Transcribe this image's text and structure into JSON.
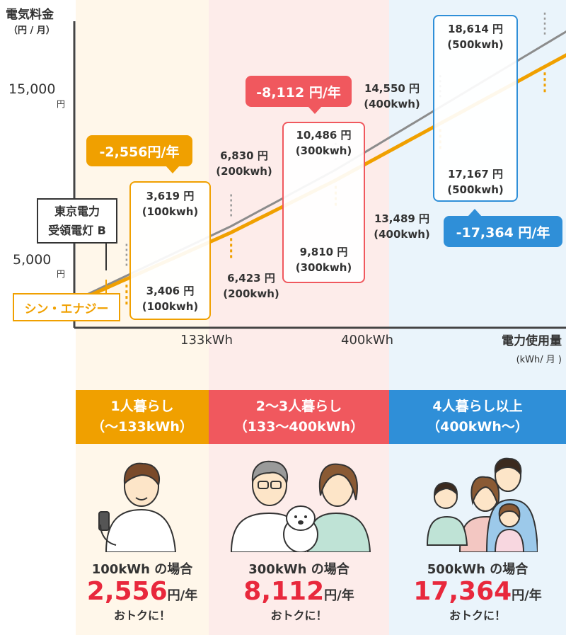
{
  "chart_data": {
    "type": "line",
    "ylabel_line1": "電気料金",
    "ylabel_line2": "（円 / 月）",
    "yticks": [
      {
        "value": "15,000",
        "unit": "円"
      },
      {
        "value": "5,000",
        "unit": "円"
      }
    ],
    "xlabel": "電力使用量",
    "xunit": "(kWh/ 月 )",
    "xticks": [
      "133kWh",
      "400kWh"
    ],
    "series": [
      {
        "name": "東京電力 受領電灯 B",
        "label_lines": [
          "東京電力",
          "受領電灯 B"
        ],
        "color": "#8c8c8c",
        "x": [
          100,
          200,
          300,
          400,
          500
        ],
        "y": [
          3619,
          6830,
          10486,
          14550,
          18614
        ]
      },
      {
        "name": "シン・エナジー",
        "color": "#f0a000",
        "x": [
          100,
          200,
          300,
          400,
          500
        ],
        "y": [
          3406,
          6423,
          9810,
          13489,
          17167
        ]
      }
    ],
    "annotations": [
      {
        "tokyo": "3,619 円",
        "tokyo_kwh": "(100kwh)",
        "shin": "3,406 円",
        "shin_kwh": "(100kwh)"
      },
      {
        "tokyo": "6,830 円",
        "tokyo_kwh": "(200kwh)",
        "shin": "6,423 円",
        "shin_kwh": "(200kwh)"
      },
      {
        "tokyo": "10,486 円",
        "tokyo_kwh": "(300kwh)",
        "shin": "9,810 円",
        "shin_kwh": "(300kwh)"
      },
      {
        "tokyo": "14,550 円",
        "tokyo_kwh": "(400kwh)",
        "shin": "13,489 円",
        "shin_kwh": "(400kwh)"
      },
      {
        "tokyo": "18,614 円",
        "tokyo_kwh": "(500kwh)",
        "shin": "17,167 円",
        "shin_kwh": "(500kwh)"
      }
    ],
    "savings_badges": [
      "-2,556円/年",
      "-8,112 円/年",
      "-17,364 円/年"
    ]
  },
  "colors": {
    "orange": "#f0a000",
    "red": "#f0585e",
    "blue": "#2f8fd8",
    "band_orange": "#fff7ea",
    "band_red": "#fdecea",
    "band_blue": "#eaf4fb"
  },
  "categories": [
    {
      "line1": "1人暮らし",
      "line2": "（〜133kWh）",
      "case": "100kWh の場合",
      "amount": "2,556",
      "unit": "円/年",
      "footer": "おトクに！",
      "illustration": "single-person-icon"
    },
    {
      "line1": "2〜3人暮らし",
      "line2": "（133〜400kWh）",
      "case": "300kWh の場合",
      "amount": "8,112",
      "unit": "円/年",
      "footer": "おトクに！",
      "illustration": "couple-with-dog-icon"
    },
    {
      "line1": "4人暮らし以上",
      "line2": "（400kWh〜）",
      "case": "500kWh の場合",
      "amount": "17,364",
      "unit": "円/年",
      "footer": "おトクに！",
      "illustration": "family-icon"
    }
  ]
}
